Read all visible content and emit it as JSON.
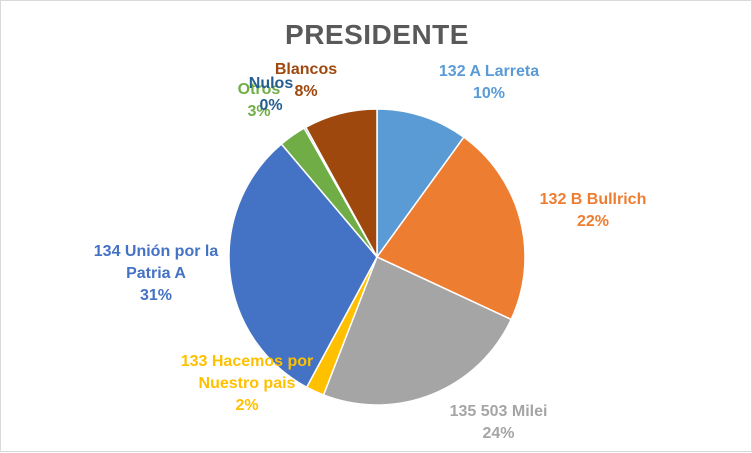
{
  "chart_data": {
    "type": "pie",
    "title": "PRESIDENTE",
    "slices": [
      {
        "label": "132 A Larreta",
        "value": 10,
        "pct_label": "10%",
        "color": "#5b9bd5"
      },
      {
        "label": "132 B Bullrich",
        "value": 22,
        "pct_label": "22%",
        "color": "#ed7d31"
      },
      {
        "label": "135 503 Milei",
        "value": 24,
        "pct_label": "24%",
        "color": "#a5a5a5"
      },
      {
        "label": "133 Hacemos por Nuestro pais",
        "value": 2,
        "pct_label": "2%",
        "color": "#ffc000"
      },
      {
        "label": "134 Unión por la Patria A",
        "value": 31,
        "pct_label": "31%",
        "color": "#4472c4"
      },
      {
        "label": "Otros",
        "value": 3,
        "pct_label": "3%",
        "color": "#70ad47"
      },
      {
        "label": "Nulos",
        "value": 0.2,
        "pct_label": "0%",
        "color": "#255e91"
      },
      {
        "label": "Blancos",
        "value": 8,
        "pct_label": "8%",
        "color": "#9e480e"
      }
    ]
  }
}
